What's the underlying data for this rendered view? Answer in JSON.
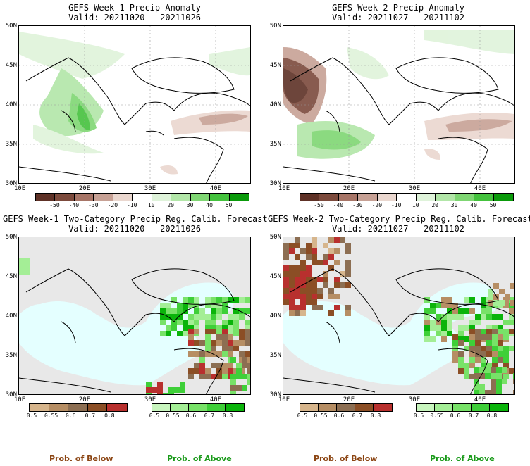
{
  "panels": {
    "p1": {
      "title": "GEFS Week-1 Precip Anomaly",
      "valid": "Valid: 20211020 - 20211026"
    },
    "p2": {
      "title": "GEFS Week-2 Precip Anomaly",
      "valid": "Valid: 20211027 - 20211102"
    },
    "p3": {
      "title": "GEFS Week-1 Two-Category Precip Reg. Calib. Forecast",
      "valid": "Valid: 20211020 - 20211026"
    },
    "p4": {
      "title": "GEFS Week-2 Two-Category Precip Reg. Calib. Forecast",
      "valid": "Valid: 20211027 - 20211102"
    }
  },
  "axes": {
    "lat_labels": [
      "50N",
      "45N",
      "40N",
      "35N",
      "30N"
    ],
    "lon_labels": [
      "10E",
      "20E",
      "30E",
      "40E"
    ]
  },
  "anomaly_colorbar": {
    "ticks": [
      "-50",
      "-40",
      "-30",
      "-20",
      "-10",
      "10",
      "20",
      "30",
      "40",
      "50"
    ],
    "colors": [
      "#5e3126",
      "#7c4a3c",
      "#a77567",
      "#c7a195",
      "#ead7cf",
      "#ffffff",
      "#dff3da",
      "#b2e6a8",
      "#7fd673",
      "#44c23d",
      "#0a9a0a"
    ]
  },
  "prob_colorbars": {
    "below": {
      "ticks": [
        "0.5",
        "0.55",
        "0.6",
        "0.7",
        "0.8"
      ],
      "colors": [
        "#d6b58c",
        "#b68e64",
        "#8c6e52",
        "#8b4e25",
        "#b8302e"
      ]
    },
    "above": {
      "ticks": [
        "0.5",
        "0.55",
        "0.6",
        "0.7",
        "0.8"
      ],
      "colors": [
        "#c8f5be",
        "#a4ee96",
        "#78e268",
        "#3ecf38",
        "#0ab40a"
      ]
    }
  },
  "legend": {
    "below": "Prob. of Below",
    "above": "Prob. of Above",
    "below_color": "#8b4513",
    "above_color": "#1a9a1a"
  },
  "map_colors": {
    "sea_forecast": "#e4ffff",
    "land_forecast": "#e8e8e8",
    "coast": "#000000"
  }
}
